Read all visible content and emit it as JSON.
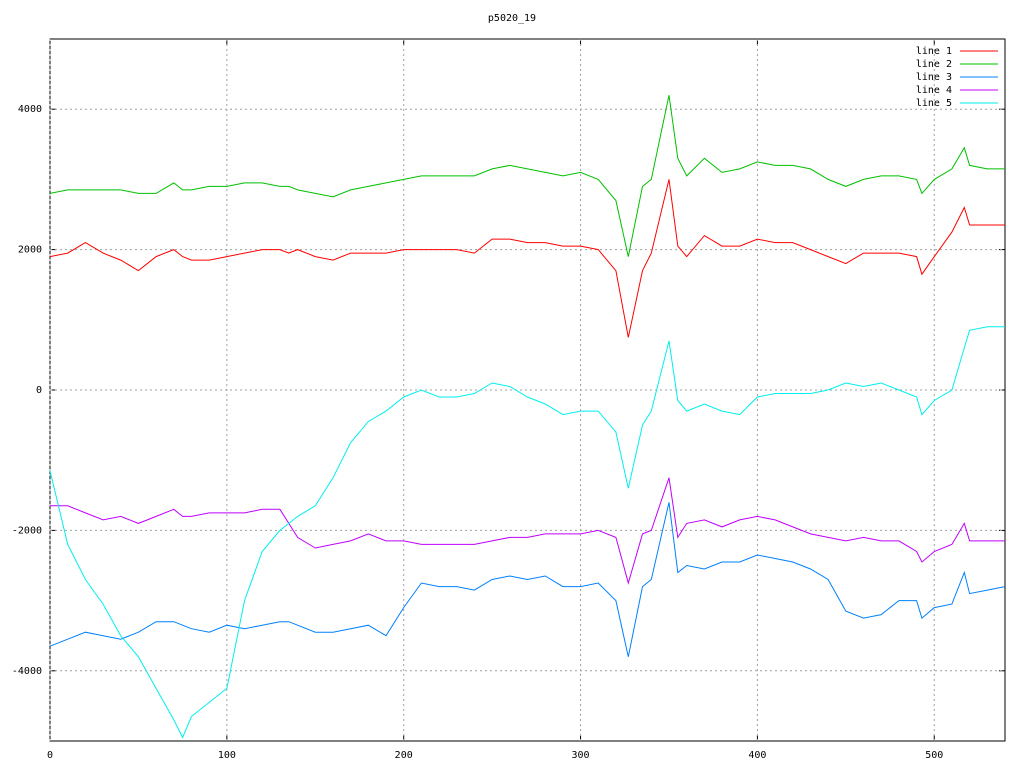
{
  "chart_data": {
    "type": "line",
    "title": "p5020_19",
    "x": [
      0,
      10,
      20,
      30,
      40,
      50,
      60,
      70,
      75,
      80,
      90,
      100,
      110,
      120,
      130,
      135,
      140,
      150,
      160,
      170,
      180,
      190,
      200,
      210,
      220,
      230,
      240,
      250,
      260,
      270,
      280,
      290,
      300,
      310,
      320,
      327,
      335,
      340,
      350,
      355,
      360,
      370,
      380,
      390,
      400,
      410,
      420,
      430,
      440,
      450,
      460,
      470,
      480,
      490,
      493,
      500,
      510,
      517,
      520,
      530,
      540
    ],
    "series": [
      {
        "name": "line 1",
        "color": "#ff0000",
        "values": [
          1900,
          1950,
          2100,
          1950,
          1850,
          1700,
          1900,
          2000,
          1900,
          1850,
          1850,
          1900,
          1950,
          2000,
          2000,
          1950,
          2000,
          1900,
          1850,
          1950,
          1950,
          1950,
          2000,
          2000,
          2000,
          2000,
          1950,
          2150,
          2150,
          2100,
          2100,
          2050,
          2050,
          2000,
          1700,
          750,
          1700,
          1950,
          3000,
          2050,
          1900,
          2200,
          2050,
          2050,
          2150,
          2100,
          2100,
          2000,
          1900,
          1800,
          1950,
          1950,
          1950,
          1900,
          1650,
          1900,
          2250,
          2600,
          2350,
          2350,
          2350
        ]
      },
      {
        "name": "line 2",
        "color": "#00c000",
        "values": [
          2800,
          2850,
          2850,
          2850,
          2850,
          2800,
          2800,
          2950,
          2850,
          2850,
          2900,
          2900,
          2950,
          2950,
          2900,
          2900,
          2850,
          2800,
          2750,
          2850,
          2900,
          2950,
          3000,
          3050,
          3050,
          3050,
          3050,
          3150,
          3200,
          3150,
          3100,
          3050,
          3100,
          3000,
          2700,
          1900,
          2900,
          3000,
          4200,
          3300,
          3050,
          3300,
          3100,
          3150,
          3250,
          3200,
          3200,
          3150,
          3000,
          2900,
          3000,
          3050,
          3050,
          3000,
          2800,
          3000,
          3150,
          3450,
          3200,
          3150,
          3150
        ]
      },
      {
        "name": "line 3",
        "color": "#0080ff",
        "values": [
          -3650,
          -3550,
          -3450,
          -3500,
          -3550,
          -3450,
          -3300,
          -3300,
          -3350,
          -3400,
          -3450,
          -3350,
          -3400,
          -3350,
          -3300,
          -3300,
          -3350,
          -3450,
          -3450,
          -3400,
          -3350,
          -3500,
          -3100,
          -2750,
          -2800,
          -2800,
          -2850,
          -2700,
          -2650,
          -2700,
          -2650,
          -2800,
          -2800,
          -2750,
          -3000,
          -3800,
          -2800,
          -2700,
          -1600,
          -2600,
          -2500,
          -2550,
          -2450,
          -2450,
          -2350,
          -2400,
          -2450,
          -2550,
          -2700,
          -3150,
          -3250,
          -3200,
          -3000,
          -3000,
          -3250,
          -3100,
          -3050,
          -2600,
          -2900,
          -2850,
          -2800
        ]
      },
      {
        "name": "line 4",
        "color": "#c000ff",
        "values": [
          -1650,
          -1650,
          -1750,
          -1850,
          -1800,
          -1900,
          -1800,
          -1700,
          -1800,
          -1800,
          -1750,
          -1750,
          -1750,
          -1700,
          -1700,
          -1900,
          -2100,
          -2250,
          -2200,
          -2150,
          -2050,
          -2150,
          -2150,
          -2200,
          -2200,
          -2200,
          -2200,
          -2150,
          -2100,
          -2100,
          -2050,
          -2050,
          -2050,
          -2000,
          -2100,
          -2750,
          -2050,
          -2000,
          -1250,
          -2100,
          -1900,
          -1850,
          -1950,
          -1850,
          -1800,
          -1850,
          -1950,
          -2050,
          -2100,
          -2150,
          -2100,
          -2150,
          -2150,
          -2300,
          -2450,
          -2300,
          -2200,
          -1900,
          -2150,
          -2150,
          -2150
        ]
      },
      {
        "name": "line 5",
        "color": "#00eeee",
        "values": [
          -1150,
          -2200,
          -2700,
          -3050,
          -3500,
          -3800,
          -4250,
          -4700,
          -4950,
          -4650,
          -4450,
          -4250,
          -3000,
          -2300,
          -2000,
          -1900,
          -1800,
          -1650,
          -1250,
          -750,
          -450,
          -300,
          -100,
          0,
          -100,
          -100,
          -50,
          100,
          50,
          -100,
          -200,
          -350,
          -300,
          -300,
          -600,
          -1400,
          -500,
          -300,
          700,
          -150,
          -300,
          -200,
          -300,
          -350,
          -100,
          -50,
          -50,
          -50,
          0,
          100,
          50,
          100,
          0,
          -100,
          -350,
          -150,
          0,
          600,
          850,
          900,
          900
        ]
      }
    ],
    "xlim": [
      0,
      540
    ],
    "ylim": [
      -5000,
      5000
    ],
    "xticks": [
      0,
      100,
      200,
      300,
      400,
      500
    ],
    "yticks": [
      -4000,
      -2000,
      0,
      2000,
      4000
    ],
    "grid": true,
    "legend": "top right"
  }
}
